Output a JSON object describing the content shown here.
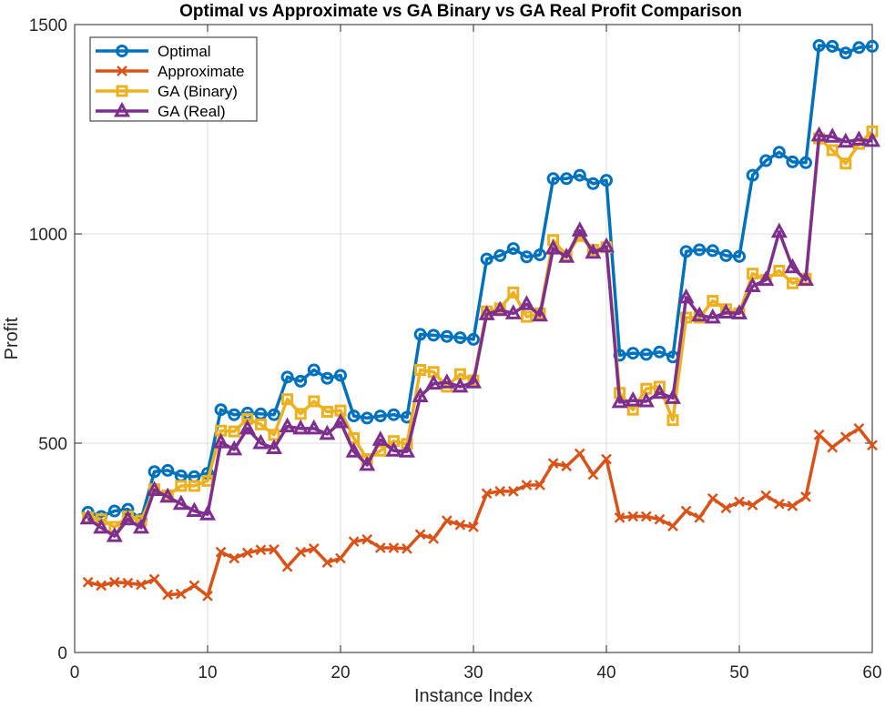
{
  "chart_data": {
    "type": "line",
    "title": "Optimal vs Approximate vs GA Binary vs GA Real Profit Comparison",
    "xlabel": "Instance Index",
    "ylabel": "Profit",
    "xlim": [
      0,
      60
    ],
    "ylim": [
      0,
      1500
    ],
    "xticks": [
      0,
      10,
      20,
      30,
      40,
      50,
      60
    ],
    "yticks": [
      0,
      500,
      1000,
      1500
    ],
    "xtick_labels": [
      "0",
      "10",
      "20",
      "30",
      "40",
      "50",
      "60"
    ],
    "ytick_labels": [
      "0",
      "500",
      "1000",
      "1500"
    ],
    "grid": true,
    "legend_position": "top-left",
    "x": [
      1,
      2,
      3,
      4,
      5,
      6,
      7,
      8,
      9,
      10,
      11,
      12,
      13,
      14,
      15,
      16,
      17,
      18,
      19,
      20,
      21,
      22,
      23,
      24,
      25,
      26,
      27,
      28,
      29,
      30,
      31,
      32,
      33,
      34,
      35,
      36,
      37,
      38,
      39,
      40,
      41,
      42,
      43,
      44,
      45,
      46,
      47,
      48,
      49,
      50,
      51,
      52,
      53,
      54,
      55,
      56,
      57,
      58,
      59,
      60
    ],
    "series": [
      {
        "name": "Optimal",
        "color": "#0072BD",
        "marker": "circle",
        "values": [
          335,
          325,
          338,
          342,
          318,
          432,
          435,
          422,
          420,
          428,
          580,
          568,
          572,
          570,
          568,
          658,
          648,
          675,
          655,
          662,
          565,
          560,
          565,
          568,
          562,
          760,
          758,
          755,
          752,
          748,
          940,
          948,
          965,
          945,
          950,
          1132,
          1132,
          1140,
          1120,
          1128,
          710,
          715,
          712,
          718,
          706,
          958,
          962,
          960,
          948,
          946,
          1140,
          1175,
          1195,
          1172,
          1170,
          1450,
          1448,
          1432,
          1445,
          1448
        ]
      },
      {
        "name": "Approximate",
        "color": "#D95319",
        "marker": "x",
        "values": [
          168,
          160,
          168,
          166,
          162,
          175,
          138,
          140,
          160,
          135,
          240,
          225,
          238,
          245,
          246,
          205,
          240,
          248,
          215,
          225,
          265,
          270,
          250,
          250,
          248,
          282,
          272,
          315,
          305,
          300,
          380,
          385,
          385,
          400,
          400,
          452,
          445,
          475,
          425,
          462,
          322,
          325,
          325,
          318,
          302,
          338,
          322,
          368,
          345,
          360,
          352,
          375,
          355,
          350,
          372,
          520,
          490,
          515,
          535,
          495
        ]
      },
      {
        "name": "GA (Binary)",
        "color": "#EDB120",
        "marker": "square",
        "values": [
          322,
          318,
          300,
          325,
          315,
          390,
          375,
          398,
          398,
          410,
          530,
          528,
          558,
          545,
          520,
          605,
          570,
          600,
          575,
          578,
          512,
          462,
          482,
          505,
          498,
          675,
          670,
          635,
          665,
          650,
          815,
          822,
          860,
          802,
          810,
          985,
          948,
          995,
          962,
          968,
          620,
          580,
          630,
          635,
          555,
          800,
          800,
          840,
          820,
          810,
          905,
          890,
          912,
          882,
          893,
          1228,
          1200,
          1168,
          1215,
          1245
        ]
      },
      {
        "name": "GA (Real)",
        "color": "#7E2F8E",
        "marker": "triangle",
        "values": [
          320,
          298,
          278,
          318,
          298,
          388,
          372,
          355,
          338,
          330,
          502,
          485,
          535,
          500,
          488,
          540,
          535,
          535,
          522,
          550,
          480,
          448,
          508,
          482,
          480,
          612,
          642,
          645,
          635,
          645,
          808,
          818,
          810,
          832,
          805,
          965,
          945,
          1008,
          955,
          970,
          598,
          602,
          600,
          620,
          608,
          848,
          805,
          800,
          812,
          810,
          875,
          890,
          1005,
          920,
          890,
          1235,
          1232,
          1220,
          1225,
          1222
        ]
      }
    ]
  }
}
